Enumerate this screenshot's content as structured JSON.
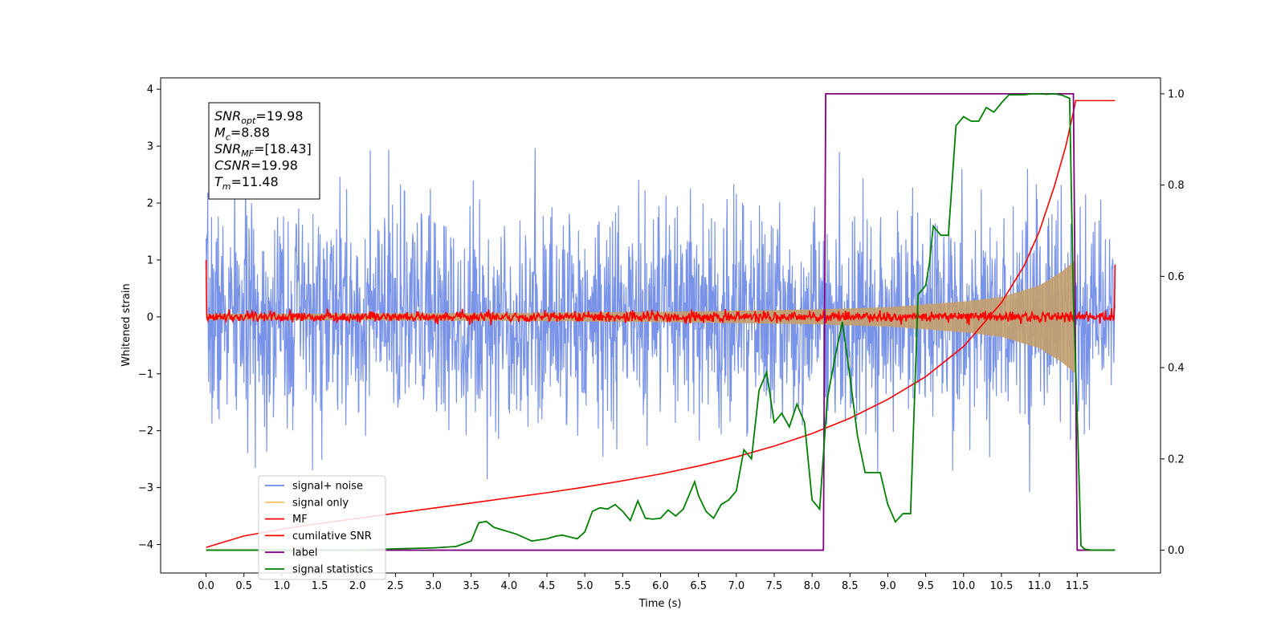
{
  "chart_data": {
    "type": "line",
    "title": "",
    "xlabel": "Time (s)",
    "ylabel_left": "Whitened strain",
    "ylabel_right": "",
    "xlim": [
      -0.6,
      12.6
    ],
    "ylim_left": [
      -4.5,
      4.2
    ],
    "ylim_right": [
      -0.05,
      1.035
    ],
    "x_ticks": [
      0.0,
      0.5,
      1.0,
      1.5,
      2.0,
      2.5,
      3.0,
      3.5,
      4.0,
      4.5,
      5.0,
      5.5,
      6.0,
      6.5,
      7.0,
      7.5,
      8.0,
      8.5,
      9.0,
      9.5,
      10.0,
      10.5,
      11.0,
      11.5
    ],
    "x_tick_labels": [
      "0.0",
      "0.5",
      "1.0",
      "1.5",
      "2.0",
      "2.5",
      "3.0",
      "3.5",
      "4.0",
      "4.5",
      "5.0",
      "5.5",
      "6.0",
      "6.5",
      "7.0",
      "7.5",
      "8.0",
      "8.5",
      "9.0",
      "9.5",
      "10.0",
      "10.5",
      "11.0",
      "11.5"
    ],
    "y_ticks_left": [
      -4,
      -3,
      -2,
      -1,
      0,
      1,
      2,
      3,
      4
    ],
    "y_tick_labels_left": [
      "−4",
      "−3",
      "−2",
      "−1",
      "0",
      "1",
      "2",
      "3",
      "4"
    ],
    "y_ticks_right": [
      0.0,
      0.2,
      0.4,
      0.6,
      0.8,
      1.0
    ],
    "y_tick_labels_right": [
      "0.0",
      "0.2",
      "0.4",
      "0.6",
      "0.8",
      "1.0"
    ],
    "grid": false,
    "legend_placement": "lower-left",
    "legend": [
      {
        "name": "signal+ noise",
        "color": "#6a87e6"
      },
      {
        "name": "signal only",
        "color": "#f6c466"
      },
      {
        "name": "MF",
        "color": "#ff0000"
      },
      {
        "name": "cumilative SNR",
        "color": "#ff0000"
      },
      {
        "name": "label",
        "color": "#800080"
      },
      {
        "name": "signal statistics",
        "color": "#008000"
      }
    ],
    "series": [
      {
        "name": "signal+ noise",
        "axis": "left",
        "color": "#6a87e6",
        "t_range": [
          0.0,
          12.0
        ],
        "samples_per_second": 180,
        "noise_std": 0.95,
        "seed": 7,
        "description_values": "white noise, roughly within -3.8 to 3.1"
      },
      {
        "name": "signal only",
        "axis": "left",
        "color": "#f6c466",
        "t_range": [
          0.0,
          11.48
        ],
        "amplitude_at_0": 0.05,
        "amplitude_at_merger": 1.0,
        "envelope_points": [
          [
            0,
            0.05
          ],
          [
            2,
            0.06
          ],
          [
            4,
            0.07
          ],
          [
            6,
            0.09
          ],
          [
            8,
            0.13
          ],
          [
            9,
            0.17
          ],
          [
            10,
            0.27
          ],
          [
            10.5,
            0.35
          ],
          [
            11.0,
            0.55
          ],
          [
            11.3,
            0.8
          ],
          [
            11.48,
            1.0
          ]
        ]
      },
      {
        "name": "MF",
        "axis": "left",
        "color": "#ff0000",
        "t_range": [
          0.0,
          12.0
        ],
        "baseline": 0.0,
        "noise_std": 0.045,
        "start_value": 1.0,
        "end_value": 0.92
      },
      {
        "name": "cumilative SNR",
        "axis": "left",
        "x": [
          0.0,
          0.5,
          1.0,
          1.5,
          2.0,
          2.5,
          3.0,
          3.5,
          4.0,
          4.5,
          5.0,
          5.5,
          6.0,
          6.5,
          7.0,
          7.5,
          8.0,
          8.5,
          9.0,
          9.5,
          10.0,
          10.5,
          10.8,
          11.0,
          11.2,
          11.35,
          11.45,
          11.48,
          11.5,
          12.0
        ],
        "y": [
          -4.05,
          -3.85,
          -3.73,
          -3.63,
          -3.54,
          -3.45,
          -3.36,
          -3.27,
          -3.18,
          -3.09,
          -2.99,
          -2.88,
          -2.76,
          -2.62,
          -2.46,
          -2.27,
          -2.05,
          -1.78,
          -1.45,
          -1.05,
          -0.52,
          0.25,
          0.9,
          1.5,
          2.3,
          3.0,
          3.6,
          3.8,
          3.8,
          3.8
        ]
      },
      {
        "name": "label",
        "axis": "right",
        "color": "#800080",
        "x": [
          0.0,
          8.15,
          8.18,
          11.45,
          11.5,
          12.0
        ],
        "y": [
          0.0,
          0.0,
          1.0,
          1.0,
          0.0,
          0.0
        ]
      },
      {
        "name": "signal statistics",
        "axis": "right",
        "color": "#008000",
        "x": [
          0.0,
          1.0,
          2.0,
          2.5,
          3.0,
          3.3,
          3.5,
          3.6,
          3.7,
          3.8,
          3.9,
          4.0,
          4.1,
          4.3,
          4.5,
          4.6,
          4.7,
          4.9,
          5.0,
          5.1,
          5.2,
          5.3,
          5.4,
          5.5,
          5.6,
          5.7,
          5.8,
          5.9,
          6.0,
          6.1,
          6.2,
          6.3,
          6.4,
          6.45,
          6.5,
          6.6,
          6.7,
          6.8,
          6.9,
          7.0,
          7.1,
          7.2,
          7.3,
          7.4,
          7.5,
          7.6,
          7.7,
          7.8,
          7.9,
          8.0,
          8.05,
          8.1,
          8.2,
          8.3,
          8.4,
          8.5,
          8.6,
          8.7,
          8.8,
          8.9,
          9.0,
          9.1,
          9.2,
          9.3,
          9.4,
          9.5,
          9.55,
          9.6,
          9.7,
          9.8,
          9.9,
          10.0,
          10.1,
          10.2,
          10.3,
          10.4,
          10.5,
          10.6,
          10.7,
          10.8,
          10.9,
          11.0,
          11.1,
          11.2,
          11.3,
          11.4,
          11.45,
          11.5,
          11.55,
          11.6,
          11.7,
          12.0
        ],
        "y": [
          0.0,
          0.0,
          0.0,
          0.003,
          0.005,
          0.008,
          0.02,
          0.06,
          0.063,
          0.05,
          0.045,
          0.04,
          0.035,
          0.02,
          0.025,
          0.03,
          0.033,
          0.025,
          0.04,
          0.085,
          0.093,
          0.09,
          0.1,
          0.085,
          0.065,
          0.108,
          0.07,
          0.068,
          0.07,
          0.088,
          0.075,
          0.09,
          0.13,
          0.15,
          0.12,
          0.085,
          0.07,
          0.1,
          0.11,
          0.13,
          0.22,
          0.2,
          0.35,
          0.39,
          0.28,
          0.3,
          0.27,
          0.32,
          0.28,
          0.11,
          0.1,
          0.09,
          0.33,
          0.42,
          0.5,
          0.38,
          0.25,
          0.17,
          0.17,
          0.17,
          0.1,
          0.062,
          0.08,
          0.08,
          0.56,
          0.58,
          0.63,
          0.71,
          0.69,
          0.69,
          0.93,
          0.95,
          0.94,
          0.94,
          0.97,
          0.96,
          0.98,
          0.998,
          0.998,
          0.998,
          1.0,
          1.0,
          0.999,
          1.0,
          0.997,
          0.99,
          0.55,
          0.3,
          0.01,
          0.002,
          0.0,
          0.0
        ]
      }
    ],
    "annotation_box": {
      "lines": [
        {
          "sym": "SNR",
          "sub": "opt",
          "val": "=19.98"
        },
        {
          "sym": "M",
          "sub": "c",
          "val": "=8.88"
        },
        {
          "sym": "SNR",
          "sub": "MF",
          "val": "=[18.43]"
        },
        {
          "sym": "CSNR",
          "sub": "",
          "val": "=19.98"
        },
        {
          "sym": "T",
          "sub": "m",
          "val": "=11.48"
        }
      ]
    }
  }
}
